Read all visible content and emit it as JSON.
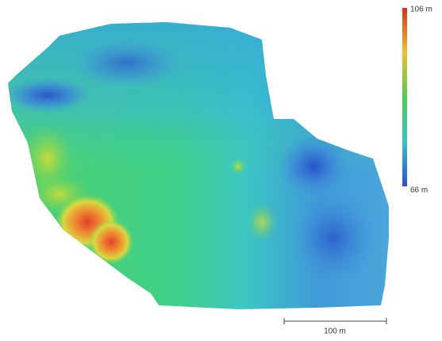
{
  "legend": {
    "max_label": "106 m",
    "min_label": "66 m"
  },
  "scale_bar": {
    "label": "100 m"
  }
}
